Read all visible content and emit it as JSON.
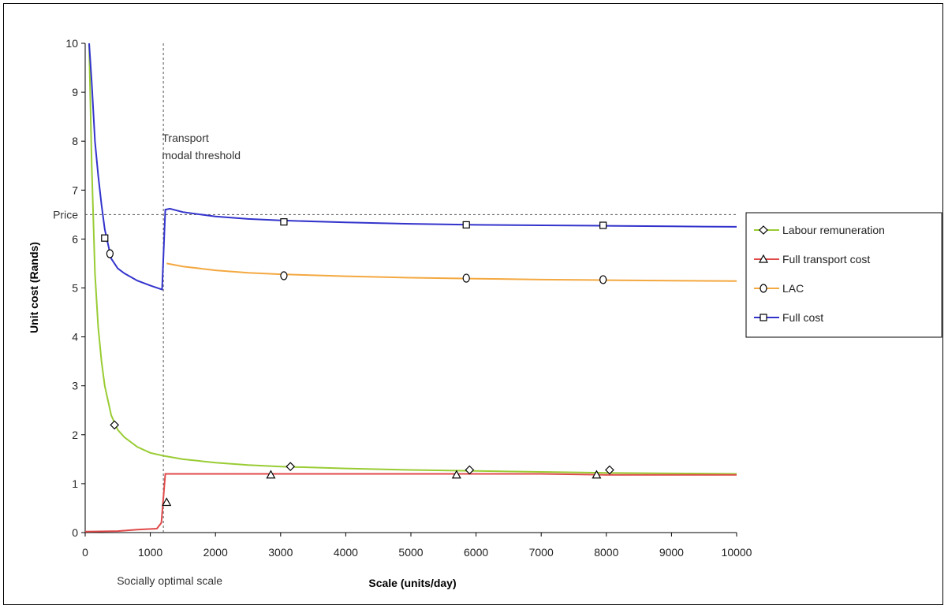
{
  "chart_data": {
    "type": "line",
    "xlabel": "Scale (units/day)",
    "ylabel": "Unit cost (Rands)",
    "xlim": [
      0,
      10000
    ],
    "ylim": [
      0,
      10
    ],
    "x_ticks": [
      0,
      1000,
      2000,
      3000,
      4000,
      5000,
      6000,
      7000,
      8000,
      9000,
      10000
    ],
    "y_ticks": [
      0,
      1,
      2,
      3,
      4,
      5,
      6,
      7,
      8,
      9,
      10
    ],
    "grid": false,
    "legend_position": "right",
    "reference_lines": [
      {
        "orientation": "horizontal",
        "value": 6.5,
        "label": "Price",
        "style": "dashed"
      },
      {
        "orientation": "vertical",
        "value": 1200,
        "label": "Socially optimal scale",
        "style": "dashed"
      }
    ],
    "annotations": [
      {
        "text_lines": [
          "Transport",
          "modal threshold"
        ],
        "x": 1300,
        "y": 8.0
      }
    ],
    "series": [
      {
        "name": "Labour remuneration",
        "color": "#99cc33",
        "marker": "diamond",
        "x": [
          60,
          100,
          150,
          200,
          250,
          300,
          400,
          500,
          600,
          800,
          1000,
          1200,
          1500,
          2000,
          2500,
          3000,
          4000,
          5000,
          6000,
          7000,
          8000,
          9000,
          10000
        ],
        "y": [
          10.0,
          7.5,
          5.3,
          4.2,
          3.5,
          3.0,
          2.4,
          2.1,
          1.95,
          1.75,
          1.63,
          1.57,
          1.5,
          1.43,
          1.38,
          1.35,
          1.31,
          1.28,
          1.26,
          1.24,
          1.22,
          1.21,
          1.2
        ],
        "markers": [
          [
            450,
            2.2
          ],
          [
            3150,
            1.35
          ],
          [
            5900,
            1.28
          ],
          [
            8050,
            1.28
          ]
        ]
      },
      {
        "name": "Full transport cost",
        "color": "#e04a4a",
        "marker": "triangle",
        "x": [
          0,
          500,
          800,
          1100,
          1170,
          1200,
          1230,
          1300,
          2000,
          3000,
          4000,
          5000,
          6000,
          7000,
          8000,
          9000,
          10000
        ],
        "y": [
          0.02,
          0.03,
          0.06,
          0.08,
          0.2,
          0.7,
          1.2,
          1.2,
          1.2,
          1.2,
          1.2,
          1.2,
          1.2,
          1.2,
          1.18,
          1.18,
          1.18
        ],
        "markers": [
          [
            1250,
            0.62
          ],
          [
            2850,
            1.18
          ],
          [
            5700,
            1.18
          ],
          [
            7850,
            1.18
          ]
        ]
      },
      {
        "name": "LAC",
        "color": "#f4a840",
        "marker": "circle",
        "x": [
          1250,
          1500,
          2000,
          2500,
          3000,
          4000,
          5000,
          6000,
          7000,
          8000,
          9000,
          10000
        ],
        "y": [
          5.5,
          5.44,
          5.36,
          5.31,
          5.28,
          5.24,
          5.21,
          5.19,
          5.17,
          5.16,
          5.15,
          5.14
        ],
        "markers": [
          [
            380,
            5.7
          ],
          [
            3050,
            5.25
          ],
          [
            5850,
            5.2
          ],
          [
            7950,
            5.17
          ]
        ]
      },
      {
        "name": "Full cost",
        "color": "#3333cc",
        "marker": "square",
        "x": [
          60,
          100,
          150,
          200,
          250,
          300,
          400,
          500,
          600,
          800,
          1000,
          1150,
          1180,
          1200,
          1230,
          1300,
          1500,
          2000,
          2500,
          3000,
          4000,
          5000,
          6000,
          7000,
          8000,
          9000,
          10000
        ],
        "y": [
          10.0,
          9.2,
          8.0,
          7.3,
          6.7,
          6.2,
          5.6,
          5.4,
          5.3,
          5.15,
          5.05,
          4.98,
          4.97,
          5.6,
          6.6,
          6.62,
          6.55,
          6.46,
          6.41,
          6.38,
          6.34,
          6.31,
          6.29,
          6.28,
          6.27,
          6.26,
          6.25
        ],
        "markers": [
          [
            300,
            6.02
          ],
          [
            3050,
            6.35
          ],
          [
            5850,
            6.29
          ],
          [
            7950,
            6.28
          ]
        ]
      }
    ]
  }
}
